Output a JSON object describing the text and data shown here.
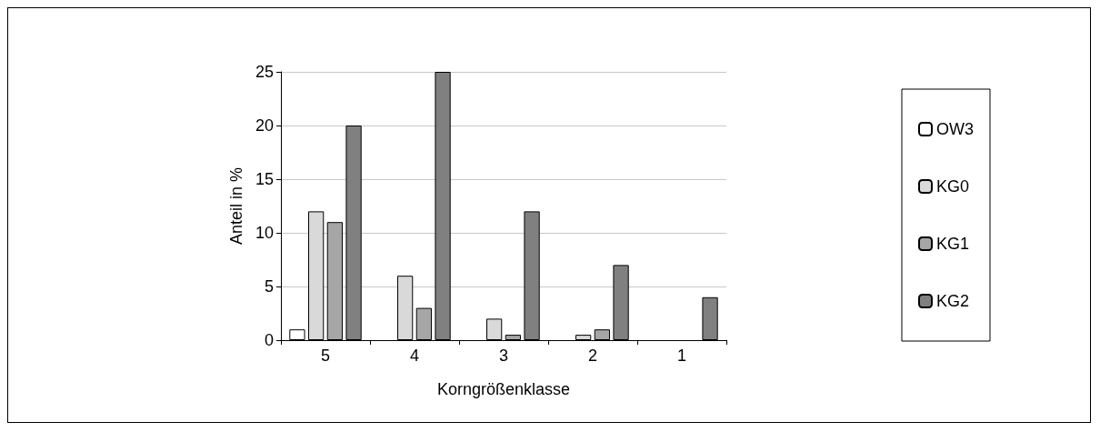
{
  "chart_data": {
    "type": "bar",
    "xlabel": "Korngrößenklasse",
    "ylabel": "Anteil in %",
    "categories": [
      "5",
      "4",
      "3",
      "2",
      "1"
    ],
    "series": [
      {
        "name": "OW3",
        "color": "#ffffff",
        "values": [
          1,
          null,
          null,
          null,
          null
        ]
      },
      {
        "name": "KG0",
        "color": "#d9d9d9",
        "values": [
          12,
          6,
          2,
          0.5,
          null
        ]
      },
      {
        "name": "KG1",
        "color": "#a6a6a6",
        "values": [
          11,
          3,
          0.5,
          1,
          null
        ]
      },
      {
        "name": "KG2",
        "color": "#808080",
        "values": [
          20,
          25,
          12,
          7,
          4
        ]
      }
    ],
    "ylim": [
      0,
      25
    ],
    "yticks": [
      0,
      5,
      10,
      15,
      20,
      25
    ],
    "grid": "y",
    "legend": "right"
  }
}
